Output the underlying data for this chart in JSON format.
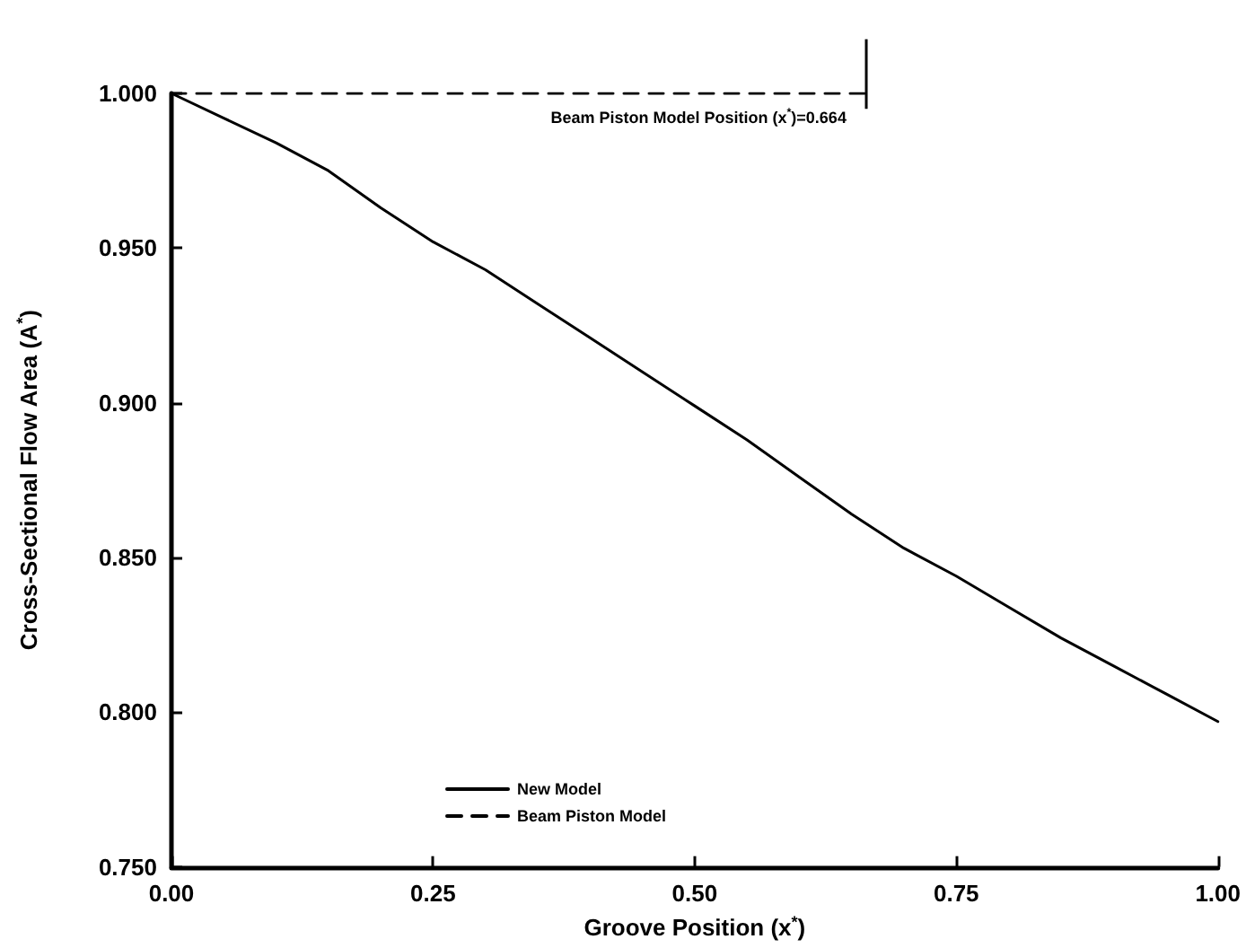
{
  "chart_data": {
    "type": "line",
    "xlabel": "Groove Position (x$^{*}$)",
    "ylabel": "Cross-Sectional Flow Area (A$^{*}$)",
    "xlim": [
      0,
      1
    ],
    "xticks": [
      {
        "value": 0,
        "label": "0.00"
      },
      {
        "value": 0.25,
        "label": "0.25"
      },
      {
        "value": 0.5,
        "label": "0.50"
      },
      {
        "value": 0.75,
        "label": "0.75"
      },
      {
        "value": 1,
        "label": "1.00"
      }
    ],
    "ylim": [
      0.75,
      1
    ],
    "yticks": [
      {
        "value": 0.75,
        "label": "0.750"
      },
      {
        "value": 0.8,
        "label": "0.800"
      },
      {
        "value": 0.85,
        "label": "0.850"
      },
      {
        "value": 0.9,
        "label": "0.900"
      },
      {
        "value": 0.95,
        "label": "0.950"
      },
      {
        "value": 1,
        "label": "1.000"
      }
    ],
    "grid": false,
    "legend": "bottom left",
    "marker": "none",
    "series": [
      {
        "name": "New Model",
        "color": "#000000",
        "line_style": "solid",
        "x": [
          0,
          0.05,
          0.1,
          0.15,
          0.2,
          0.25,
          0.3,
          0.35,
          0.4,
          0.45,
          0.5,
          0.55,
          0.6,
          0.65,
          0.7,
          0.75,
          0.8,
          0.85,
          0.9,
          0.95,
          1
        ],
        "values": [
          1.0,
          0.992,
          0.984,
          0.975,
          0.963,
          0.952,
          0.943,
          0.932,
          0.921,
          0.91,
          0.899,
          0.888,
          0.876,
          0.864,
          0.853,
          0.844,
          0.834,
          0.824,
          0.815,
          0.806,
          0.797
        ]
      },
      {
        "name": "Beam Piston Model",
        "color": "#000000",
        "line_style": "dashed",
        "x": [
          0,
          0.664
        ],
        "values": [
          1.0,
          1.0
        ]
      }
    ],
    "ref_lines": [
      {
        "axis": "x",
        "value": 0.664,
        "label": "Beam Piston Model Position (x$^{*}$)=0.664"
      }
    ]
  }
}
